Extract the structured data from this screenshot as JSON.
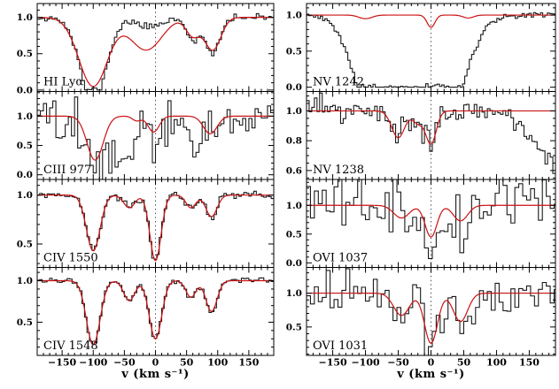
{
  "figure": {
    "background": "#ffffff",
    "frame_color": "#000000",
    "data_color": "#1a1a1a",
    "model_color": "#cc1111",
    "zero_line_color": "#555555"
  },
  "chart_data": {
    "type": "line",
    "title": "",
    "xlabel": "v  (km s⁻¹)",
    "ylabel": "",
    "x_range": [
      -190,
      190
    ],
    "x_ticks": [
      -150,
      -100,
      -50,
      0,
      50,
      100,
      150
    ],
    "x_minor_step": 10,
    "zero_velocity_marker": 0,
    "series_note": "black = observed histogram spectrum, red = model fit",
    "panels": [
      {
        "id": "hi-lya",
        "label": "HI Lyα",
        "col": 0,
        "row": 0,
        "y_range": [
          -0.02,
          1.19
        ],
        "y_ticks": [
          0.0,
          0.5,
          1.0
        ],
        "y_minor": 0.1,
        "model_components": [
          {
            "v": -100,
            "d": 0.95,
            "w": 23
          },
          {
            "v": -15,
            "d": 0.45,
            "w": 25
          },
          {
            "v": 60,
            "d": 0.25,
            "w": 11
          },
          {
            "v": 92,
            "d": 0.45,
            "w": 13
          }
        ],
        "data_components": [
          {
            "v": -100,
            "d": 1.15,
            "w": 21
          },
          {
            "v": -10,
            "d": 0.13,
            "w": 20
          },
          {
            "v": 60,
            "d": 0.3,
            "w": 10
          },
          {
            "v": 92,
            "d": 0.5,
            "w": 12
          }
        ],
        "noise": 0.022,
        "bin": 4,
        "seed": 11,
        "clamp_zero": true
      },
      {
        "id": "ciii-977",
        "label": "CIII 977",
        "col": 0,
        "row": 1,
        "y_range": [
          -0.08,
          1.42
        ],
        "y_ticks": [
          0.0,
          0.5,
          1.0
        ],
        "y_minor": 0.1,
        "model_components": [
          {
            "v": -97,
            "d": 0.75,
            "w": 13
          },
          {
            "v": -30,
            "d": 0.08,
            "w": 7
          },
          {
            "v": -3,
            "d": 0.27,
            "w": 9
          },
          {
            "v": 88,
            "d": 0.3,
            "w": 11
          }
        ],
        "data_components": [
          {
            "v": -95,
            "d": 0.8,
            "w": 22
          },
          {
            "v": -45,
            "d": 0.6,
            "w": 15
          },
          {
            "v": 0,
            "d": 0.35,
            "w": 14
          },
          {
            "v": 60,
            "d": 0.3,
            "w": 9
          },
          {
            "v": 90,
            "d": 0.25,
            "w": 9
          }
        ],
        "noise": 0.19,
        "bin": 5,
        "seed": 22,
        "clamp_zero": false
      },
      {
        "id": "civ-1550",
        "label": "CIV 1550",
        "col": 0,
        "row": 2,
        "y_range": [
          0.26,
          1.16
        ],
        "y_ticks": [
          0.5,
          1.0
        ],
        "y_minor": 0.1,
        "model_components": [
          {
            "v": -100,
            "d": 0.57,
            "w": 11
          },
          {
            "v": -42,
            "d": 0.13,
            "w": 9
          },
          {
            "v": 0,
            "d": 0.67,
            "w": 9
          },
          {
            "v": 57,
            "d": 0.13,
            "w": 8
          },
          {
            "v": 90,
            "d": 0.22,
            "w": 9
          }
        ],
        "data_components": [
          {
            "v": -100,
            "d": 0.57,
            "w": 11
          },
          {
            "v": -42,
            "d": 0.13,
            "w": 9
          },
          {
            "v": 0,
            "d": 0.67,
            "w": 9
          },
          {
            "v": 57,
            "d": 0.13,
            "w": 8
          },
          {
            "v": 90,
            "d": 0.22,
            "w": 9
          }
        ],
        "noise": 0.018,
        "bin": 4,
        "seed": 33,
        "clamp_zero": false
      },
      {
        "id": "civ-1548",
        "label": "CIV 1548",
        "col": 0,
        "row": 3,
        "y_range": [
          0.1,
          1.16
        ],
        "y_ticks": [
          0.5,
          1.0
        ],
        "y_minor": 0.1,
        "model_components": [
          {
            "v": -100,
            "d": 0.77,
            "w": 11
          },
          {
            "v": -42,
            "d": 0.24,
            "w": 9
          },
          {
            "v": 0,
            "d": 0.7,
            "w": 10
          },
          {
            "v": 57,
            "d": 0.2,
            "w": 8
          },
          {
            "v": 90,
            "d": 0.37,
            "w": 9
          }
        ],
        "data_components": [
          {
            "v": -100,
            "d": 0.77,
            "w": 11
          },
          {
            "v": -42,
            "d": 0.24,
            "w": 9
          },
          {
            "v": 0,
            "d": 0.7,
            "w": 10
          },
          {
            "v": 57,
            "d": 0.2,
            "w": 8
          },
          {
            "v": 90,
            "d": 0.37,
            "w": 9
          }
        ],
        "noise": 0.018,
        "bin": 4,
        "seed": 44,
        "clamp_zero": false
      },
      {
        "id": "nv-1242",
        "label": "NV 1242",
        "col": 1,
        "row": 0,
        "y_range": [
          -0.06,
          1.16
        ],
        "y_ticks": [
          0.0,
          0.5,
          1.0
        ],
        "y_minor": 0.1,
        "model_components": [
          {
            "v": -100,
            "d": 0.05,
            "w": 10
          },
          {
            "v": 0,
            "d": 0.17,
            "w": 6
          },
          {
            "v": 57,
            "d": 0.04,
            "w": 8
          }
        ],
        "data_components": [
          {
            "v": -90,
            "d": 1.2,
            "w": 30
          },
          {
            "v": -30,
            "d": 1.25,
            "w": 35
          },
          {
            "v": 25,
            "d": 1.2,
            "w": 30
          }
        ],
        "noise": 0.02,
        "bin": 3.5,
        "seed": 55,
        "clamp_zero": true
      },
      {
        "id": "nv-1238",
        "label": "NV 1238",
        "col": 1,
        "row": 1,
        "y_range": [
          0.54,
          1.13
        ],
        "y_ticks": [
          0.6,
          0.8,
          1.0
        ],
        "y_minor": 0.05,
        "model_components": [
          {
            "v": -50,
            "d": 0.18,
            "w": 10
          },
          {
            "v": -20,
            "d": 0.08,
            "w": 8
          },
          {
            "v": 0,
            "d": 0.22,
            "w": 8
          }
        ],
        "data_components": [
          {
            "v": -50,
            "d": 0.15,
            "w": 10
          },
          {
            "v": -20,
            "d": 0.1,
            "w": 8
          },
          {
            "v": 0,
            "d": 0.2,
            "w": 8
          },
          {
            "v": 230,
            "d": 0.55,
            "w": 50
          }
        ],
        "noise": 0.035,
        "bin": 4,
        "seed": 66,
        "clamp_zero": false
      },
      {
        "id": "ovi-1037",
        "label": "OVI 1037",
        "col": 1,
        "row": 2,
        "y_range": [
          -0.08,
          1.45
        ],
        "y_ticks": [
          0.0,
          0.5,
          1.0
        ],
        "y_minor": 0.1,
        "model_components": [
          {
            "v": -45,
            "d": 0.22,
            "w": 12
          },
          {
            "v": 0,
            "d": 0.55,
            "w": 9
          },
          {
            "v": 45,
            "d": 0.27,
            "w": 11
          }
        ],
        "data_components": [
          {
            "v": -45,
            "d": 0.22,
            "w": 12
          },
          {
            "v": 0,
            "d": 0.55,
            "w": 10
          },
          {
            "v": 45,
            "d": 0.27,
            "w": 12
          }
        ],
        "noise": 0.26,
        "bin": 6,
        "seed": 77,
        "clamp_zero": false
      },
      {
        "id": "ovi-1031",
        "label": "OVI 1031",
        "col": 1,
        "row": 3,
        "y_range": [
          0.08,
          1.38
        ],
        "y_ticks": [
          0.5,
          1.0
        ],
        "y_minor": 0.1,
        "model_components": [
          {
            "v": -45,
            "d": 0.33,
            "w": 12
          },
          {
            "v": 0,
            "d": 0.74,
            "w": 10
          },
          {
            "v": 45,
            "d": 0.42,
            "w": 11
          }
        ],
        "data_components": [
          {
            "v": -45,
            "d": 0.33,
            "w": 12
          },
          {
            "v": 0,
            "d": 0.8,
            "w": 11
          },
          {
            "v": 45,
            "d": 0.45,
            "w": 12
          }
        ],
        "noise": 0.17,
        "bin": 6,
        "seed": 88,
        "clamp_zero": false
      }
    ]
  }
}
